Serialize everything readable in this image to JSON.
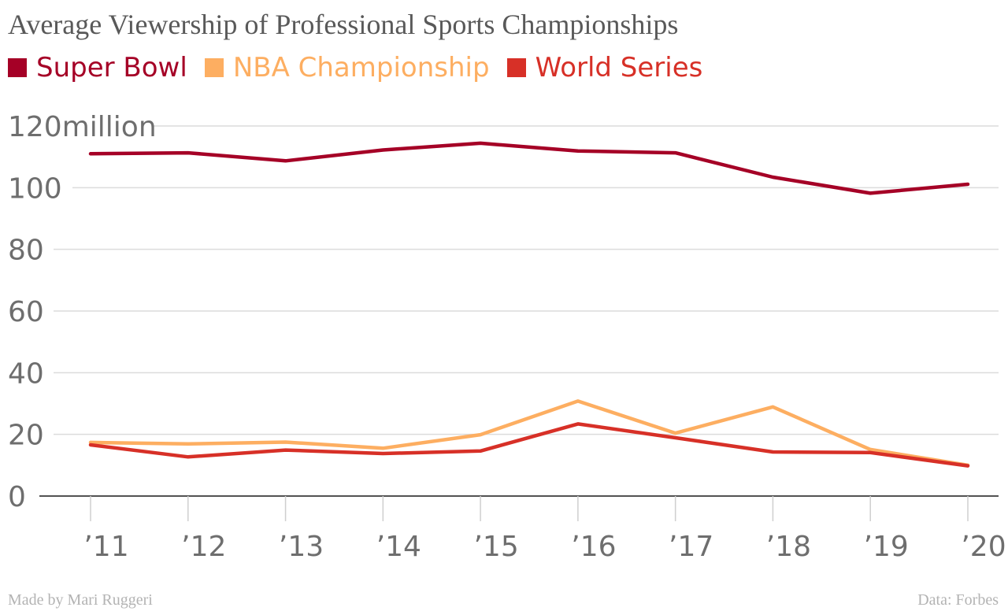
{
  "chart_data": {
    "type": "line",
    "title": "Average Viewership of Professional Sports Championships",
    "categories": [
      "'11",
      "'12",
      "'13",
      "'14",
      "'15",
      "'16",
      "'17",
      "'18",
      "'19",
      "'20"
    ],
    "y_tick_labels": [
      "120million",
      "100",
      "80",
      "60",
      "40",
      "20",
      "0"
    ],
    "y_ticks": [
      120,
      100,
      80,
      60,
      40,
      20,
      0
    ],
    "ylim": [
      0,
      120
    ],
    "grid": true,
    "legend_placement": "top-left",
    "series": [
      {
        "name": "Super Bowl",
        "color": "#a50026",
        "values": [
          111.0,
          111.3,
          108.7,
          112.2,
          114.4,
          111.9,
          111.3,
          103.4,
          98.2,
          101.1
        ]
      },
      {
        "name": "NBA Championship",
        "color": "#fdae61",
        "values": [
          17.4,
          16.9,
          17.5,
          15.5,
          19.9,
          30.8,
          20.4,
          28.9,
          15.1,
          10.0
        ]
      },
      {
        "name": "World Series",
        "color": "#d73027",
        "values": [
          16.6,
          12.7,
          14.9,
          13.8,
          14.6,
          23.4,
          18.9,
          14.3,
          14.1,
          9.8
        ]
      }
    ]
  },
  "footer": {
    "credit": "Made by Mari Ruggeri",
    "source": "Data: Forbes"
  }
}
